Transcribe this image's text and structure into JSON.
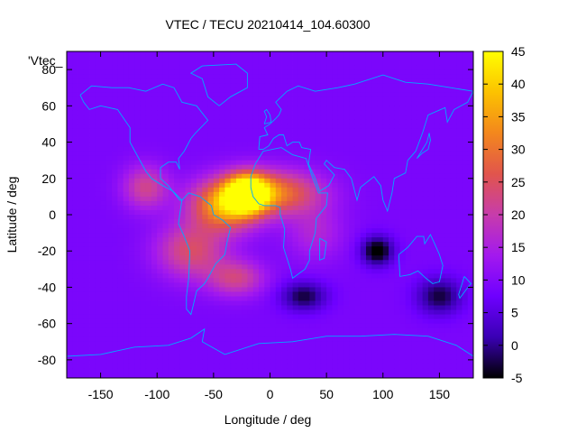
{
  "chart_data": {
    "type": "heatmap",
    "title": "VTEC / TECU 20210414_104.60300",
    "xlabel": "Longitude / deg",
    "ylabel": "Latitude / deg",
    "key_label": "'Vtec_",
    "xlim": [
      -180,
      180
    ],
    "ylim": [
      -90,
      90
    ],
    "x_ticks": [
      "-150",
      "-100",
      "-50",
      "0",
      "50",
      "100",
      "150"
    ],
    "x_tick_values": [
      -150,
      -100,
      -50,
      0,
      50,
      100,
      150
    ],
    "y_ticks": [
      "80",
      "60",
      "40",
      "20",
      "0",
      "-20",
      "-40",
      "-60",
      "-80"
    ],
    "y_tick_values": [
      80,
      60,
      40,
      20,
      0,
      -20,
      -40,
      -60,
      -80
    ],
    "colorbar": {
      "range": [
        -5,
        45
      ],
      "ticks": [
        "45",
        "40",
        "35",
        "30",
        "25",
        "20",
        "15",
        "10",
        "5",
        "0",
        "-5"
      ],
      "tick_values": [
        45,
        40,
        35,
        30,
        25,
        20,
        15,
        10,
        5,
        0,
        -5
      ],
      "palette": [
        "#000000",
        "#3a00b4",
        "#6e00ff",
        "#a319ee",
        "#c73cab",
        "#e1554c",
        "#f3871d",
        "#fcc200",
        "#ffff00"
      ]
    },
    "background_vtec": 9,
    "peaks": [
      {
        "lon": -20,
        "lat": 12,
        "vtec": 44,
        "sx": 18,
        "sy": 10
      },
      {
        "lon": -40,
        "lat": 5,
        "vtec": 35,
        "sx": 30,
        "sy": 14
      },
      {
        "lon": 5,
        "lat": 12,
        "vtec": 30,
        "sx": 40,
        "sy": 12
      },
      {
        "lon": -110,
        "lat": 15,
        "vtec": 22,
        "sx": 20,
        "sy": 12
      },
      {
        "lon": -70,
        "lat": -20,
        "vtec": 24,
        "sx": 30,
        "sy": 15
      },
      {
        "lon": -30,
        "lat": -35,
        "vtec": 22,
        "sx": 25,
        "sy": 10
      },
      {
        "lon": 40,
        "lat": -10,
        "vtec": 16,
        "sx": 25,
        "sy": 15
      }
    ],
    "troughs": [
      {
        "lon": 95,
        "lat": -20,
        "vtec": -7,
        "sx": 14,
        "sy": 8
      },
      {
        "lon": 150,
        "lat": -45,
        "vtec": -3,
        "sx": 20,
        "sy": 10
      },
      {
        "lon": 30,
        "lat": -45,
        "vtec": -3,
        "sx": 20,
        "sy": 8
      }
    ],
    "coastlines": [
      {
        "name": "north-america",
        "points": [
          [
            -168,
            66
          ],
          [
            -158,
            71
          ],
          [
            -140,
            70
          ],
          [
            -125,
            70
          ],
          [
            -110,
            68
          ],
          [
            -95,
            72
          ],
          [
            -85,
            70
          ],
          [
            -78,
            62
          ],
          [
            -65,
            60
          ],
          [
            -55,
            52
          ],
          [
            -66,
            45
          ],
          [
            -70,
            42
          ],
          [
            -76,
            35
          ],
          [
            -81,
            31
          ],
          [
            -80,
            25
          ],
          [
            -83,
            29
          ],
          [
            -90,
            29
          ],
          [
            -97,
            26
          ],
          [
            -97,
            20
          ],
          [
            -90,
            16
          ],
          [
            -85,
            12
          ],
          [
            -80,
            8
          ],
          [
            -78,
            8
          ],
          [
            -86,
            13
          ],
          [
            -95,
            16
          ],
          [
            -105,
            20
          ],
          [
            -110,
            24
          ],
          [
            -117,
            32
          ],
          [
            -124,
            40
          ],
          [
            -124,
            48
          ],
          [
            -135,
            58
          ],
          [
            -150,
            60
          ],
          [
            -160,
            58
          ],
          [
            -165,
            62
          ],
          [
            -168,
            66
          ]
        ]
      },
      {
        "name": "south-america",
        "points": [
          [
            -78,
            8
          ],
          [
            -72,
            12
          ],
          [
            -62,
            10
          ],
          [
            -52,
            5
          ],
          [
            -50,
            0
          ],
          [
            -42,
            -3
          ],
          [
            -35,
            -7
          ],
          [
            -38,
            -15
          ],
          [
            -40,
            -22
          ],
          [
            -48,
            -27
          ],
          [
            -55,
            -35
          ],
          [
            -58,
            -38
          ],
          [
            -65,
            -42
          ],
          [
            -68,
            -50
          ],
          [
            -70,
            -55
          ],
          [
            -74,
            -52
          ],
          [
            -74,
            -45
          ],
          [
            -72,
            -35
          ],
          [
            -71,
            -20
          ],
          [
            -76,
            -12
          ],
          [
            -81,
            -5
          ],
          [
            -80,
            0
          ],
          [
            -78,
            8
          ]
        ]
      },
      {
        "name": "greenland",
        "points": [
          [
            -45,
            60
          ],
          [
            -55,
            65
          ],
          [
            -60,
            75
          ],
          [
            -70,
            78
          ],
          [
            -60,
            82
          ],
          [
            -30,
            83
          ],
          [
            -20,
            78
          ],
          [
            -20,
            70
          ],
          [
            -35,
            65
          ],
          [
            -45,
            60
          ]
        ]
      },
      {
        "name": "africa",
        "points": [
          [
            -17,
            21
          ],
          [
            -13,
            28
          ],
          [
            -6,
            35
          ],
          [
            10,
            37
          ],
          [
            20,
            33
          ],
          [
            32,
            31
          ],
          [
            34,
            27
          ],
          [
            38,
            20
          ],
          [
            43,
            12
          ],
          [
            51,
            12
          ],
          [
            50,
            5
          ],
          [
            41,
            -2
          ],
          [
            40,
            -10
          ],
          [
            35,
            -20
          ],
          [
            35,
            -25
          ],
          [
            31,
            -30
          ],
          [
            20,
            -35
          ],
          [
            18,
            -30
          ],
          [
            12,
            -18
          ],
          [
            13,
            -8
          ],
          [
            9,
            0
          ],
          [
            9,
            4
          ],
          [
            5,
            5
          ],
          [
            -5,
            5
          ],
          [
            -10,
            6
          ],
          [
            -15,
            10
          ],
          [
            -17,
            15
          ],
          [
            -17,
            21
          ]
        ]
      },
      {
        "name": "madagascar",
        "points": [
          [
            44,
            -13
          ],
          [
            50,
            -15
          ],
          [
            48,
            -24
          ],
          [
            44,
            -25
          ],
          [
            44,
            -13
          ]
        ]
      },
      {
        "name": "eurasia",
        "points": [
          [
            -10,
            36
          ],
          [
            -9,
            43
          ],
          [
            -2,
            44
          ],
          [
            -5,
            48
          ],
          [
            0,
            50
          ],
          [
            5,
            53
          ],
          [
            8,
            55
          ],
          [
            10,
            58
          ],
          [
            5,
            62
          ],
          [
            15,
            68
          ],
          [
            25,
            71
          ],
          [
            40,
            68
          ],
          [
            60,
            70
          ],
          [
            75,
            72
          ],
          [
            100,
            77
          ],
          [
            120,
            73
          ],
          [
            140,
            72
          ],
          [
            160,
            70
          ],
          [
            180,
            68
          ],
          [
            175,
            62
          ],
          [
            163,
            58
          ],
          [
            157,
            51
          ],
          [
            155,
            59
          ],
          [
            140,
            55
          ],
          [
            135,
            45
          ],
          [
            129,
            35
          ],
          [
            122,
            30
          ],
          [
            120,
            23
          ],
          [
            110,
            20
          ],
          [
            108,
            12
          ],
          [
            104,
            2
          ],
          [
            100,
            8
          ],
          [
            98,
            16
          ],
          [
            92,
            21
          ],
          [
            80,
            15
          ],
          [
            77,
            8
          ],
          [
            72,
            20
          ],
          [
            66,
            25
          ],
          [
            57,
            26
          ],
          [
            50,
            30
          ],
          [
            48,
            28
          ],
          [
            57,
            22
          ],
          [
            52,
            16
          ],
          [
            44,
            13
          ],
          [
            40,
            20
          ],
          [
            34,
            28
          ],
          [
            36,
            36
          ],
          [
            28,
            37
          ],
          [
            26,
            40
          ],
          [
            20,
            40
          ],
          [
            15,
            38
          ],
          [
            12,
            44
          ],
          [
            8,
            44
          ],
          [
            3,
            42
          ],
          [
            -1,
            38
          ],
          [
            -6,
            36
          ],
          [
            -10,
            36
          ]
        ]
      },
      {
        "name": "great-britain",
        "points": [
          [
            -5,
            50
          ],
          [
            1,
            51
          ],
          [
            0,
            55
          ],
          [
            -3,
            58
          ],
          [
            -5,
            57
          ],
          [
            -3,
            54
          ],
          [
            -5,
            50
          ]
        ]
      },
      {
        "name": "australia",
        "points": [
          [
            114,
            -22
          ],
          [
            122,
            -18
          ],
          [
            130,
            -12
          ],
          [
            136,
            -12
          ],
          [
            137,
            -16
          ],
          [
            142,
            -11
          ],
          [
            145,
            -15
          ],
          [
            150,
            -22
          ],
          [
            153,
            -28
          ],
          [
            150,
            -37
          ],
          [
            144,
            -38
          ],
          [
            138,
            -35
          ],
          [
            131,
            -31
          ],
          [
            124,
            -33
          ],
          [
            115,
            -34
          ],
          [
            114,
            -22
          ]
        ]
      },
      {
        "name": "new-zealand",
        "points": [
          [
            172,
            -34
          ],
          [
            178,
            -38
          ],
          [
            174,
            -41
          ],
          [
            168,
            -46
          ],
          [
            167,
            -44
          ],
          [
            172,
            -34
          ]
        ]
      },
      {
        "name": "japan",
        "points": [
          [
            130,
            31
          ],
          [
            135,
            34
          ],
          [
            140,
            36
          ],
          [
            142,
            41
          ],
          [
            141,
            45
          ],
          [
            139,
            40
          ],
          [
            134,
            35
          ],
          [
            130,
            31
          ]
        ]
      },
      {
        "name": "antarctica",
        "points": [
          [
            -180,
            -78
          ],
          [
            -150,
            -77
          ],
          [
            -120,
            -73
          ],
          [
            -90,
            -72
          ],
          [
            -70,
            -68
          ],
          [
            -58,
            -63
          ],
          [
            -60,
            -70
          ],
          [
            -40,
            -77
          ],
          [
            -10,
            -71
          ],
          [
            20,
            -70
          ],
          [
            50,
            -67
          ],
          [
            80,
            -67
          ],
          [
            110,
            -66
          ],
          [
            140,
            -67
          ],
          [
            165,
            -72
          ],
          [
            180,
            -78
          ]
        ]
      }
    ]
  }
}
